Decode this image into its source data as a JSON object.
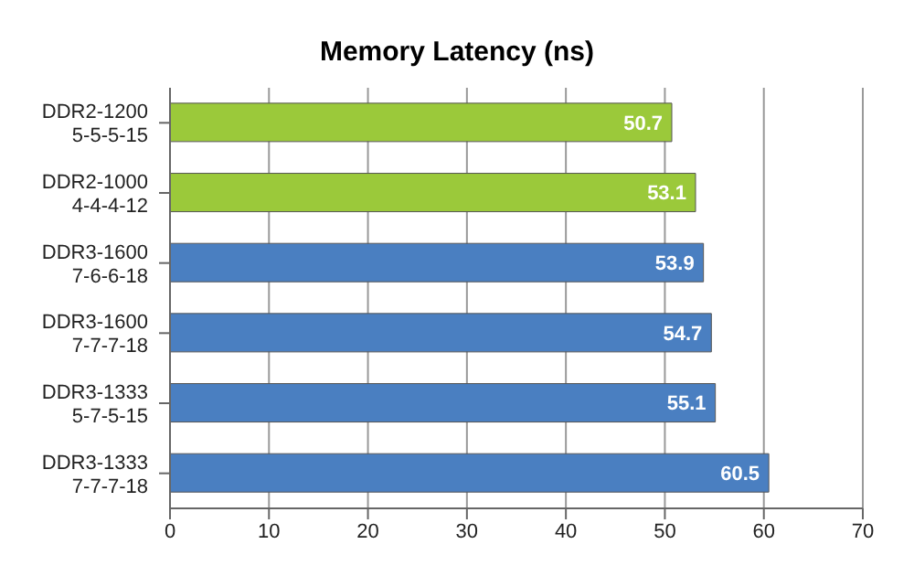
{
  "chart_data": {
    "type": "bar",
    "orientation": "horizontal",
    "title": "Memory Latency (ns)",
    "categories": [
      "DDR2-1200\n5-5-5-15",
      "DDR2-1000\n4-4-4-12",
      "DDR3-1600\n7-6-6-18",
      "DDR3-1600\n7-7-7-18",
      "DDR3-1333\n5-7-5-15",
      "DDR3-1333\n7-7-7-18"
    ],
    "values": [
      50.7,
      53.1,
      53.9,
      54.7,
      55.1,
      60.5
    ],
    "colors": [
      "#9bc93a",
      "#9bc93a",
      "#4a7fc1",
      "#4a7fc1",
      "#4a7fc1",
      "#4a7fc1"
    ],
    "xlim": [
      0,
      70
    ],
    "xticks": [
      0,
      10,
      20,
      30,
      40,
      50,
      60,
      70
    ],
    "grid": "x",
    "data_labels": true
  }
}
